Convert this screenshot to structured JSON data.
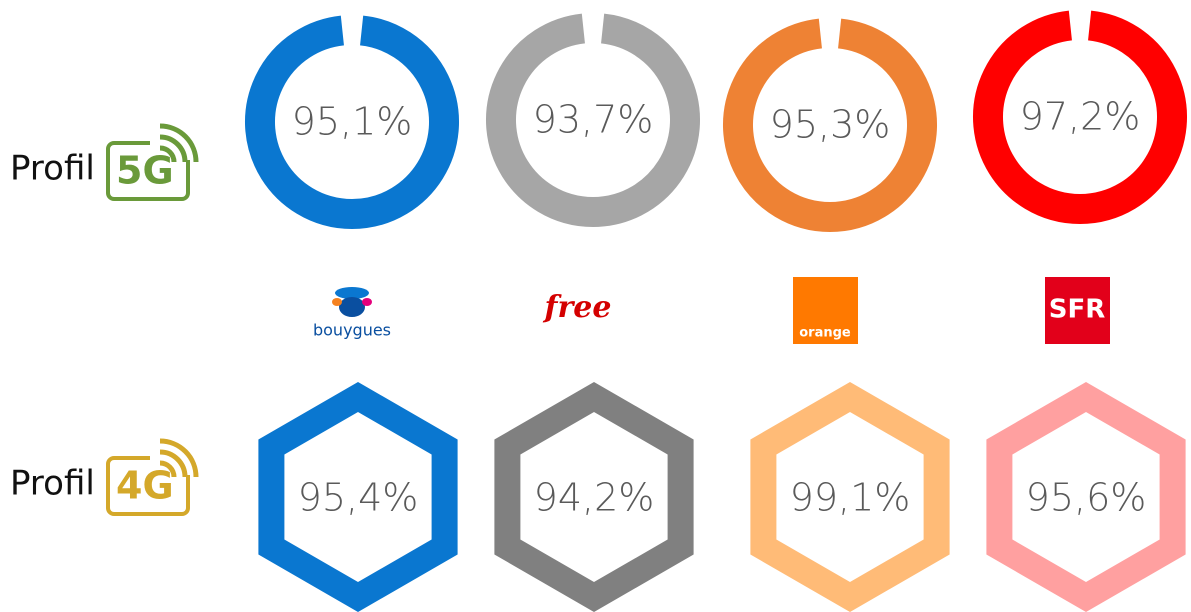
{
  "rows": [
    {
      "label": "Profil",
      "badge": "5G",
      "values": [
        "95,1%",
        "93,7%",
        "95,3%",
        "97,2%"
      ]
    },
    {
      "label": "Profil",
      "badge": "4G",
      "values": [
        "95,4%",
        "94,2%",
        "99,1%",
        "95,6%"
      ]
    }
  ],
  "operators": [
    "bouygues",
    "free",
    "orange",
    "SFR"
  ]
}
